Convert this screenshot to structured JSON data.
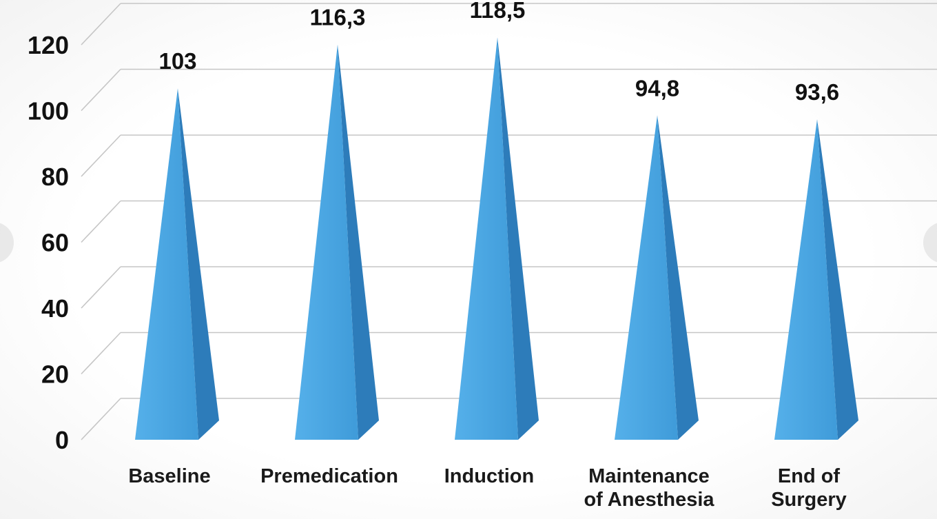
{
  "chart_data": {
    "type": "bar",
    "subtype": "3d-pyramid",
    "title": "",
    "xlabel": "",
    "ylabel": "",
    "categories": [
      "Baseline",
      "Premedication",
      "Induction",
      "Maintenance of Anesthesia",
      "End of Surgery"
    ],
    "category_lines": [
      [
        "Baseline"
      ],
      [
        "Premedication"
      ],
      [
        "Induction"
      ],
      [
        "Maintenance",
        "of Anesthesia"
      ],
      [
        "End of",
        "Surgery"
      ]
    ],
    "values": [
      103,
      116.3,
      118.5,
      94.8,
      93.6
    ],
    "value_labels": [
      "103",
      "116,3",
      "118,5",
      "94,8",
      "93,6"
    ],
    "ylim": [
      0,
      120
    ],
    "yticks": [
      0,
      20,
      40,
      60,
      80,
      100,
      120
    ],
    "ytick_labels": [
      "0",
      "20",
      "40",
      "60",
      "80",
      "100",
      "120"
    ],
    "grid": true,
    "legend": false,
    "colors": {
      "bar_front": "#48a5e3",
      "bar_front_light": "#5cb3ec",
      "bar_side": "#2d7cba",
      "gridline": "#c6c6c6",
      "text": "#111111",
      "background": "#fbfbfb",
      "edge_overlay": "#d9d9d9"
    }
  }
}
